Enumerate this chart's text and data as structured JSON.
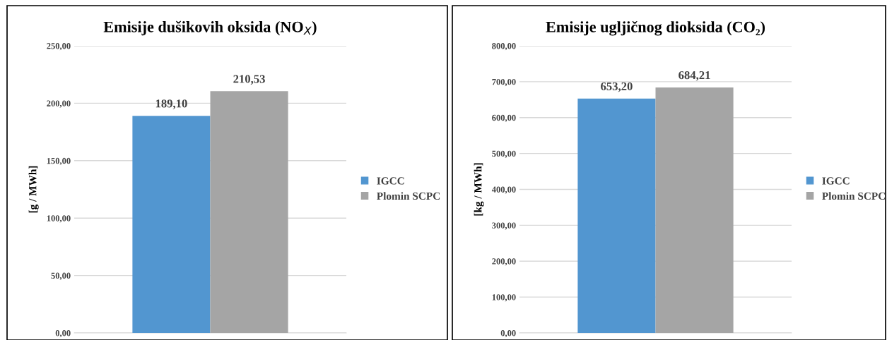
{
  "chart_data": [
    {
      "type": "bar",
      "title": "Emisije dušikovih oksida (NO$_{X}$)",
      "ylabel": "[g / MWh]",
      "categories": [
        null
      ],
      "series": [
        {
          "name": "IGCC",
          "color": "#5296d0",
          "values": [
            189.1
          ],
          "value_labels": [
            "189,10"
          ]
        },
        {
          "name": "Plomin SCPC",
          "color": "#a5a5a5",
          "values": [
            210.53
          ],
          "value_labels": [
            "210,53"
          ]
        }
      ],
      "ylim": [
        0,
        250
      ],
      "yticks": [
        {
          "value": 0,
          "label": "0,00"
        },
        {
          "value": 50,
          "label": "50,00"
        },
        {
          "value": 100,
          "label": "100,00"
        },
        {
          "value": 150,
          "label": "150,00"
        },
        {
          "value": 200,
          "label": "200,00"
        },
        {
          "value": 250,
          "label": "250,00"
        }
      ],
      "grid": "y",
      "legend": "right"
    },
    {
      "type": "bar",
      "title": "Emisije ugljičnog dioksida (CO₂)",
      "ylabel": "[kg / MWh]",
      "categories": [
        null
      ],
      "series": [
        {
          "name": "IGCC",
          "color": "#5296d0",
          "values": [
            653.2
          ],
          "value_labels": [
            "653,20"
          ]
        },
        {
          "name": "Plomin SCPC",
          "color": "#a5a5a5",
          "values": [
            684.21
          ],
          "value_labels": [
            "684,21"
          ]
        }
      ],
      "ylim": [
        0,
        800
      ],
      "yticks": [
        {
          "value": 0,
          "label": "0,00"
        },
        {
          "value": 100,
          "label": "100,00"
        },
        {
          "value": 200,
          "label": "200,00"
        },
        {
          "value": 300,
          "label": "300,00"
        },
        {
          "value": 400,
          "label": "400,00"
        },
        {
          "value": 500,
          "label": "500,00"
        },
        {
          "value": 600,
          "label": "600,00"
        },
        {
          "value": 700,
          "label": "700,00"
        },
        {
          "value": 800,
          "label": "800,00"
        }
      ],
      "grid": "y",
      "legend": "right"
    }
  ]
}
